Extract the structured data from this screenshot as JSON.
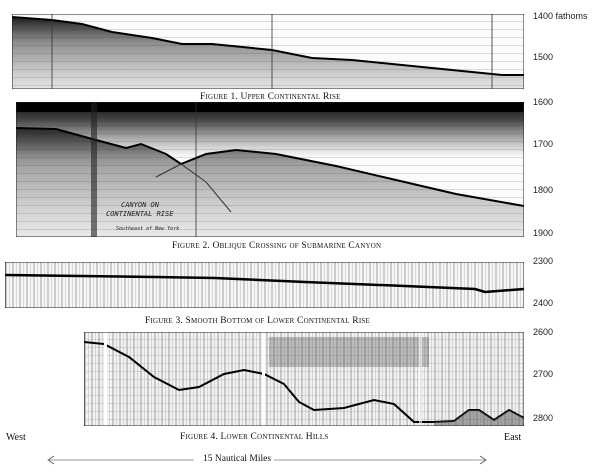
{
  "figures": [
    {
      "caption": "Figure 1. Upper Continental Rise",
      "depth_labels": [
        "1400 fathoms",
        "1500"
      ]
    },
    {
      "caption": "Figure 2. Oblique Crossing of Submarine Canyon",
      "depth_labels": [
        "1600",
        "1700",
        "1800",
        "1900"
      ],
      "annotation": {
        "line1": "CANYON ON",
        "line2": "CONTINENTAL RISE",
        "line3": "Southeast of New York"
      }
    },
    {
      "caption": "Figure 3. Smooth Bottom of Lower Continental Rise",
      "depth_labels": [
        "2300",
        "2400"
      ]
    },
    {
      "caption": "Figure 4. Lower Continental Hills",
      "depth_labels": [
        "2600",
        "2700",
        "2800"
      ]
    }
  ],
  "direction": {
    "west": "West",
    "east": "East"
  },
  "scale": {
    "label": "15 Nautical Miles"
  },
  "colors": {
    "ink": "#111111",
    "paper": "#ffffff",
    "grid": "#9a9a9a"
  }
}
